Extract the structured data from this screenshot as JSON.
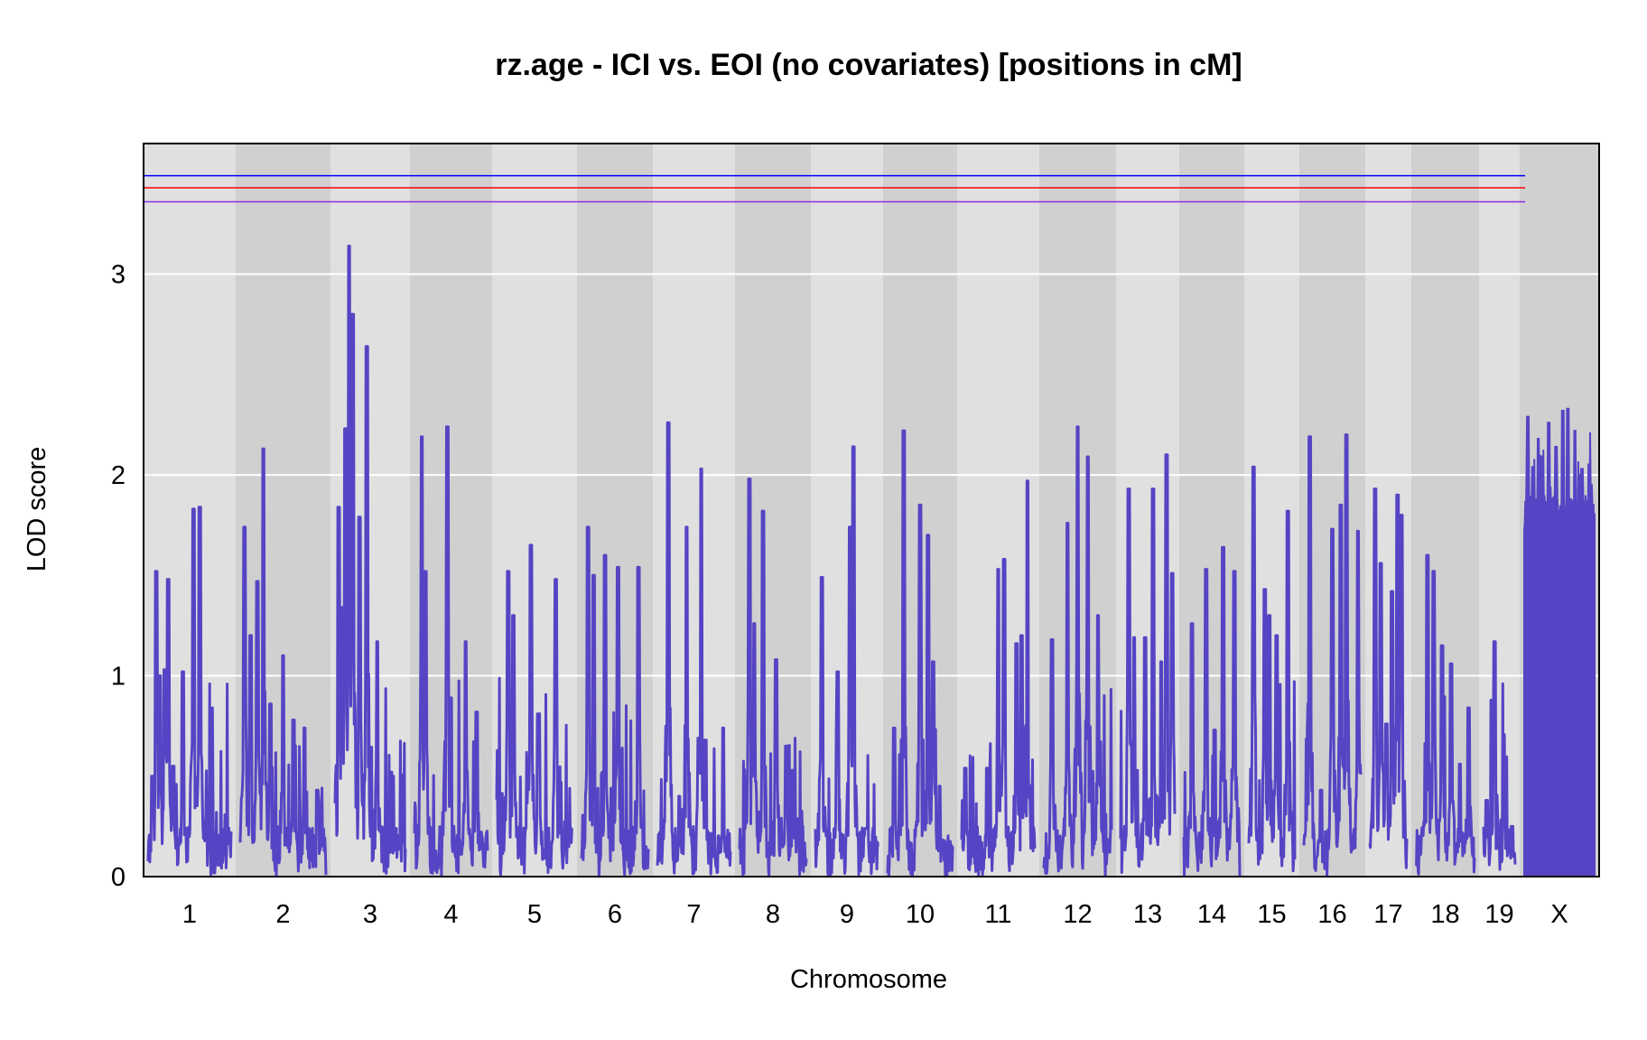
{
  "chart_data": {
    "type": "line",
    "title": "rz.age - ICI vs. EOI (no covariates) [positions in cM]",
    "xlabel": "Chromosome",
    "ylabel": "LOD score",
    "ylim": [
      0,
      3.65
    ],
    "yticks": [
      0,
      1,
      2,
      3
    ],
    "grid": true,
    "background": "alternating gray chromosome bands",
    "series_color": "#5544c4",
    "thresholds": [
      {
        "value": 3.49,
        "color": "#0000ff"
      },
      {
        "value": 3.43,
        "color": "#ff0000"
      },
      {
        "value": 3.36,
        "color": "#8a2be2"
      }
    ],
    "chromosomes": [
      {
        "label": "1",
        "peaks": [
          [
            0.05,
            0.5
          ],
          [
            0.1,
            1.52
          ],
          [
            0.14,
            1.0
          ],
          [
            0.2,
            1.03
          ],
          [
            0.24,
            1.48
          ],
          [
            0.3,
            0.55
          ],
          [
            0.42,
            1.02
          ],
          [
            0.55,
            1.83
          ],
          [
            0.62,
            1.84
          ],
          [
            0.7,
            0.28
          ],
          [
            0.85,
            0.17
          ]
        ]
      },
      {
        "label": "2",
        "peaks": [
          [
            0.05,
            1.74
          ],
          [
            0.12,
            1.2
          ],
          [
            0.2,
            1.47
          ],
          [
            0.27,
            2.13
          ],
          [
            0.35,
            0.86
          ],
          [
            0.5,
            1.1
          ],
          [
            0.62,
            0.78
          ],
          [
            0.75,
            0.74
          ],
          [
            0.9,
            0.43
          ]
        ]
      },
      {
        "label": "3",
        "peaks": [
          [
            0.05,
            1.84
          ],
          [
            0.1,
            1.34
          ],
          [
            0.15,
            2.23
          ],
          [
            0.2,
            3.14
          ],
          [
            0.25,
            2.8
          ],
          [
            0.35,
            1.79
          ],
          [
            0.45,
            2.64
          ],
          [
            0.6,
            1.17
          ],
          [
            0.8,
            0.52
          ]
        ]
      },
      {
        "label": "4",
        "peaks": [
          [
            0.1,
            2.19
          ],
          [
            0.15,
            1.52
          ],
          [
            0.45,
            2.24
          ],
          [
            0.5,
            0.89
          ],
          [
            0.7,
            1.17
          ],
          [
            0.85,
            0.82
          ]
        ]
      },
      {
        "label": "5",
        "peaks": [
          [
            0.15,
            1.52
          ],
          [
            0.22,
            1.3
          ],
          [
            0.45,
            1.65
          ],
          [
            0.55,
            0.81
          ],
          [
            0.78,
            1.48
          ]
        ]
      },
      {
        "label": "6",
        "peaks": [
          [
            0.1,
            1.74
          ],
          [
            0.18,
            1.5
          ],
          [
            0.35,
            1.6
          ],
          [
            0.45,
            0.44
          ],
          [
            0.55,
            1.54
          ],
          [
            0.85,
            1.54
          ]
        ]
      },
      {
        "label": "7",
        "peaks": [
          [
            0.15,
            2.26
          ],
          [
            0.3,
            0.4
          ],
          [
            0.4,
            1.74
          ],
          [
            0.6,
            2.03
          ],
          [
            0.66,
            0.68
          ],
          [
            0.9,
            0.74
          ]
        ]
      },
      {
        "label": "8",
        "peaks": [
          [
            0.15,
            1.98
          ],
          [
            0.22,
            1.26
          ],
          [
            0.35,
            1.82
          ],
          [
            0.55,
            1.08
          ],
          [
            0.7,
            0.65
          ],
          [
            0.8,
            0.53
          ]
        ]
      },
      {
        "label": "9",
        "peaks": [
          [
            0.1,
            1.49
          ],
          [
            0.35,
            1.02
          ],
          [
            0.55,
            1.74
          ],
          [
            0.6,
            2.14
          ],
          [
            0.8,
            0.24
          ]
        ]
      },
      {
        "label": "10",
        "peaks": [
          [
            0.1,
            0.74
          ],
          [
            0.25,
            2.22
          ],
          [
            0.5,
            1.85
          ],
          [
            0.62,
            1.7
          ],
          [
            0.7,
            1.07
          ],
          [
            0.8,
            0.45
          ]
        ]
      },
      {
        "label": "11",
        "peaks": [
          [
            0.05,
            0.54
          ],
          [
            0.35,
            0.54
          ],
          [
            0.5,
            1.53
          ],
          [
            0.58,
            1.58
          ],
          [
            0.75,
            1.16
          ],
          [
            0.82,
            1.2
          ],
          [
            0.9,
            1.97
          ]
        ]
      },
      {
        "label": "12",
        "peaks": [
          [
            0.12,
            1.18
          ],
          [
            0.35,
            1.76
          ],
          [
            0.5,
            2.24
          ],
          [
            0.65,
            2.09
          ],
          [
            0.8,
            1.3
          ]
        ]
      },
      {
        "label": "13",
        "peaks": [
          [
            0.15,
            1.93
          ],
          [
            0.25,
            1.19
          ],
          [
            0.45,
            1.19
          ],
          [
            0.6,
            1.93
          ],
          [
            0.75,
            1.07
          ],
          [
            0.85,
            2.1
          ],
          [
            0.95,
            1.51
          ]
        ]
      },
      {
        "label": "14",
        "peaks": [
          [
            0.15,
            1.26
          ],
          [
            0.4,
            1.53
          ],
          [
            0.55,
            0.73
          ],
          [
            0.7,
            1.64
          ],
          [
            0.9,
            1.52
          ]
        ]
      },
      {
        "label": "15",
        "peaks": [
          [
            0.1,
            2.04
          ],
          [
            0.35,
            1.43
          ],
          [
            0.45,
            1.3
          ],
          [
            0.6,
            1.2
          ],
          [
            0.85,
            1.82
          ]
        ]
      },
      {
        "label": "16",
        "peaks": [
          [
            0.1,
            2.19
          ],
          [
            0.3,
            0.43
          ],
          [
            0.5,
            1.73
          ],
          [
            0.65,
            1.85
          ],
          [
            0.75,
            2.2
          ],
          [
            0.95,
            1.72
          ]
        ]
      },
      {
        "label": "17",
        "peaks": [
          [
            0.15,
            1.93
          ],
          [
            0.3,
            1.56
          ],
          [
            0.45,
            0.76
          ],
          [
            0.6,
            1.42
          ],
          [
            0.75,
            1.9
          ],
          [
            0.85,
            1.8
          ]
        ]
      },
      {
        "label": "18",
        "peaks": [
          [
            0.2,
            1.6
          ],
          [
            0.3,
            1.52
          ],
          [
            0.45,
            1.15
          ],
          [
            0.6,
            1.06
          ],
          [
            0.75,
            0.56
          ],
          [
            0.9,
            0.84
          ]
        ]
      },
      {
        "label": "19",
        "peaks": [
          [
            0.1,
            0.38
          ],
          [
            0.35,
            1.17
          ],
          [
            0.65,
            0.25
          ],
          [
            0.9,
            0.25
          ]
        ]
      },
      {
        "label": "X",
        "peaks": [
          [
            0.05,
            2.29
          ],
          [
            0.12,
            2.04
          ],
          [
            0.2,
            2.18
          ],
          [
            0.35,
            2.26
          ],
          [
            0.45,
            2.14
          ],
          [
            0.55,
            2.32
          ],
          [
            0.62,
            2.33
          ],
          [
            0.72,
            2.22
          ],
          [
            0.82,
            2.03
          ],
          [
            0.95,
            1.95
          ]
        ],
        "floor": 1.72
      }
    ]
  }
}
